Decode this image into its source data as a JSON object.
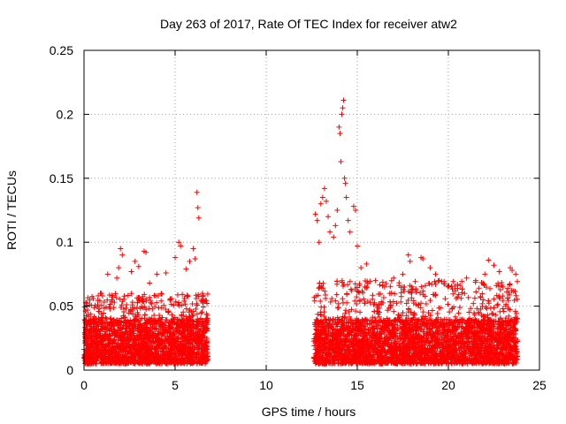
{
  "chart_data": {
    "type": "scatter",
    "title": "Day 263 of 2017, Rate Of TEC Index for receiver atw2",
    "xlabel": "GPS time / hours",
    "ylabel": "ROTI / TECUs",
    "xlim": [
      0,
      25
    ],
    "ylim": [
      0,
      0.25
    ],
    "xticks": [
      "0",
      "5",
      "10",
      "15",
      "20",
      "25"
    ],
    "yticks": [
      "0",
      "0.05",
      "0.1",
      "0.15",
      "0.2",
      "0.25"
    ],
    "grid": true,
    "marker": "plus",
    "color": "#ff0000",
    "bands": [
      {
        "x_range": [
          0,
          6.8
        ],
        "typical_y": [
          0.005,
          0.04
        ],
        "peak_y": 0.06
      },
      {
        "x_range": [
          12.6,
          23.8
        ],
        "typical_y": [
          0.005,
          0.04
        ],
        "peak_y": 0.07
      }
    ],
    "series": [
      {
        "values": [
          [
            0.1,
            0.053
          ],
          [
            0.2,
            0.047
          ],
          [
            0.9,
            0.06
          ],
          [
            1.3,
            0.075
          ],
          [
            1.8,
            0.072
          ],
          [
            1.9,
            0.08
          ],
          [
            2.0,
            0.095
          ],
          [
            2.1,
            0.09
          ],
          [
            2.6,
            0.077
          ],
          [
            2.8,
            0.085
          ],
          [
            3.0,
            0.081
          ],
          [
            3.3,
            0.093
          ],
          [
            3.4,
            0.092
          ],
          [
            3.6,
            0.068
          ],
          [
            4.0,
            0.075
          ],
          [
            4.5,
            0.076
          ],
          [
            5.0,
            0.088
          ],
          [
            5.2,
            0.1
          ],
          [
            5.3,
            0.097
          ],
          [
            5.6,
            0.079
          ],
          [
            5.8,
            0.085
          ],
          [
            6.0,
            0.095
          ],
          [
            6.1,
            0.087
          ],
          [
            6.2,
            0.139
          ],
          [
            6.25,
            0.127
          ],
          [
            6.3,
            0.119
          ],
          [
            6.5,
            0.06
          ],
          [
            6.6,
            0.054
          ],
          [
            12.7,
            0.122
          ],
          [
            12.8,
            0.117
          ],
          [
            12.9,
            0.1
          ],
          [
            13.0,
            0.13
          ],
          [
            13.1,
            0.135
          ],
          [
            13.2,
            0.142
          ],
          [
            13.3,
            0.132
          ],
          [
            13.4,
            0.12
          ],
          [
            13.5,
            0.108
          ],
          [
            13.7,
            0.104
          ],
          [
            13.8,
            0.113
          ],
          [
            13.9,
            0.125
          ],
          [
            14.0,
            0.19
          ],
          [
            14.05,
            0.185
          ],
          [
            14.1,
            0.163
          ],
          [
            14.15,
            0.2
          ],
          [
            14.2,
            0.205
          ],
          [
            14.25,
            0.211
          ],
          [
            14.3,
            0.15
          ],
          [
            14.35,
            0.146
          ],
          [
            14.4,
            0.135
          ],
          [
            14.5,
            0.117
          ],
          [
            14.6,
            0.108
          ],
          [
            14.8,
            0.128
          ],
          [
            14.9,
            0.125
          ],
          [
            15.0,
            0.097
          ],
          [
            15.2,
            0.08
          ],
          [
            15.5,
            0.083
          ],
          [
            16.0,
            0.07
          ],
          [
            16.5,
            0.065
          ],
          [
            17.0,
            0.072
          ],
          [
            17.5,
            0.075
          ],
          [
            17.8,
            0.09
          ],
          [
            17.9,
            0.085
          ],
          [
            18.5,
            0.088
          ],
          [
            18.6,
            0.087
          ],
          [
            19.0,
            0.08
          ],
          [
            19.3,
            0.075
          ],
          [
            19.5,
            0.07
          ],
          [
            20.0,
            0.065
          ],
          [
            20.5,
            0.067
          ],
          [
            21.0,
            0.072
          ],
          [
            21.5,
            0.07
          ],
          [
            22.0,
            0.075
          ],
          [
            22.2,
            0.086
          ],
          [
            22.5,
            0.082
          ],
          [
            22.8,
            0.077
          ],
          [
            23.0,
            0.065
          ],
          [
            23.4,
            0.08
          ],
          [
            23.5,
            0.078
          ],
          [
            23.7,
            0.075
          ]
        ]
      }
    ]
  }
}
